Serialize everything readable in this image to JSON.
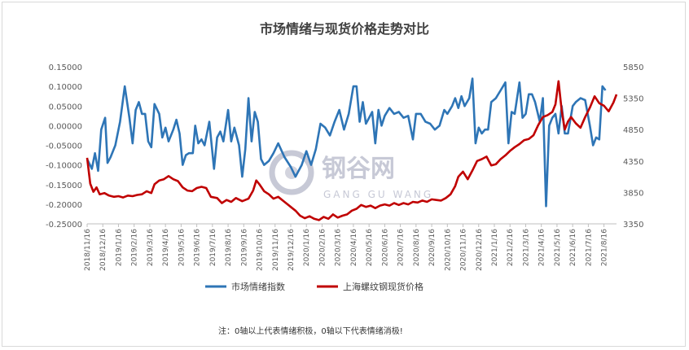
{
  "title": "市场情绪与现货价格走势对比",
  "note": "注：0轴以上代表情绪积极，0轴以下代表情绪消极!",
  "watermark": {
    "main": "钢谷网",
    "sub": "GANG GU WANG"
  },
  "colors": {
    "sentiment": "#2e75b6",
    "price": "#c00000"
  },
  "chart_data": {
    "type": "line",
    "dual_axis": true,
    "y_left": {
      "range": [
        -0.25,
        0.15
      ],
      "ticks": [
        "-0.25000",
        "-0.20000",
        "-0.15000",
        "-0.10000",
        "-0.05000",
        "0.00000",
        "0.05000",
        "0.10000",
        "0.15000"
      ]
    },
    "y_right": {
      "range": [
        3350,
        5850
      ],
      "ticks": [
        "3350",
        "3850",
        "4350",
        "4850",
        "5350",
        "5850"
      ]
    },
    "x_tick_labels": [
      "2018/11/16",
      "2018/12/16",
      "2019/1/16",
      "2019/2/16",
      "2019/3/16",
      "2019/4/16",
      "2019/5/16",
      "2019/6/16",
      "2019/7/16",
      "2019/8/16",
      "2019/9/16",
      "2019/10/16",
      "2019/11/16",
      "2019/12/16",
      "2020/1/16",
      "2020/2/16",
      "2020/3/16",
      "2020/4/16",
      "2020/5/16",
      "2020/6/16",
      "2020/7/16",
      "2020/8/16",
      "2020/9/16",
      "2020/10/16",
      "2020/11/16",
      "2020/12/16",
      "2021/1/16",
      "2021/2/16",
      "2021/3/16",
      "2021/4/16",
      "2021/5/16",
      "2021/6/16",
      "2021/7/16",
      "2021/8/16"
    ],
    "x_range": [
      0,
      33.8
    ],
    "series": [
      {
        "name": "市场情绪指数",
        "axis": "left",
        "points": [
          [
            0,
            -0.085
          ],
          [
            0.3,
            -0.11
          ],
          [
            0.5,
            -0.07
          ],
          [
            0.7,
            -0.115
          ],
          [
            0.9,
            -0.01
          ],
          [
            1.15,
            0.02
          ],
          [
            1.3,
            -0.095
          ],
          [
            1.5,
            -0.08
          ],
          [
            1.8,
            -0.05
          ],
          [
            2.1,
            0.01
          ],
          [
            2.4,
            0.1
          ],
          [
            2.7,
            0.02
          ],
          [
            2.9,
            -0.045
          ],
          [
            3.1,
            0.04
          ],
          [
            3.3,
            0.06
          ],
          [
            3.5,
            0.03
          ],
          [
            3.7,
            0.03
          ],
          [
            3.9,
            -0.04
          ],
          [
            4.1,
            -0.055
          ],
          [
            4.3,
            0.055
          ],
          [
            4.6,
            0.03
          ],
          [
            4.8,
            -0.03
          ],
          [
            5.0,
            -0.005
          ],
          [
            5.2,
            -0.04
          ],
          [
            5.5,
            -0.01
          ],
          [
            5.7,
            0.015
          ],
          [
            5.9,
            -0.02
          ],
          [
            6.1,
            -0.1
          ],
          [
            6.3,
            -0.075
          ],
          [
            6.5,
            -0.07
          ],
          [
            6.75,
            -0.07
          ],
          [
            6.9,
            0.0
          ],
          [
            7.1,
            -0.045
          ],
          [
            7.3,
            -0.035
          ],
          [
            7.5,
            -0.05
          ],
          [
            7.8,
            0.01
          ],
          [
            8.1,
            -0.11
          ],
          [
            8.3,
            -0.03
          ],
          [
            8.5,
            -0.015
          ],
          [
            8.7,
            -0.04
          ],
          [
            9.0,
            0.04
          ],
          [
            9.2,
            -0.04
          ],
          [
            9.4,
            -0.005
          ],
          [
            9.7,
            -0.05
          ],
          [
            9.9,
            -0.13
          ],
          [
            10.1,
            -0.06
          ],
          [
            10.3,
            0.07
          ],
          [
            10.5,
            -0.04
          ],
          [
            10.7,
            0.035
          ],
          [
            10.9,
            0.01
          ],
          [
            11.1,
            -0.085
          ],
          [
            11.3,
            -0.1
          ],
          [
            11.6,
            -0.09
          ],
          [
            11.9,
            -0.07
          ],
          [
            12.2,
            -0.045
          ],
          [
            12.6,
            -0.08
          ],
          [
            13.0,
            -0.105
          ],
          [
            13.3,
            -0.13
          ],
          [
            13.7,
            -0.1
          ],
          [
            14.0,
            -0.065
          ],
          [
            14.3,
            -0.1
          ],
          [
            14.6,
            -0.06
          ],
          [
            14.9,
            0.005
          ],
          [
            15.2,
            -0.005
          ],
          [
            15.5,
            -0.025
          ],
          [
            15.8,
            0.01
          ],
          [
            16.1,
            0.04
          ],
          [
            16.4,
            -0.01
          ],
          [
            16.7,
            0.03
          ],
          [
            17.0,
            0.1
          ],
          [
            17.2,
            0.1
          ],
          [
            17.4,
            0.01
          ],
          [
            17.6,
            0.06
          ],
          [
            17.8,
            0.005
          ],
          [
            18.0,
            0.02
          ],
          [
            18.2,
            0.035
          ],
          [
            18.4,
            -0.045
          ],
          [
            18.6,
            0.04
          ],
          [
            18.8,
            0.0
          ],
          [
            19.0,
            0.025
          ],
          [
            19.3,
            0.045
          ],
          [
            19.6,
            0.03
          ],
          [
            19.9,
            0.035
          ],
          [
            20.2,
            0.02
          ],
          [
            20.5,
            0.025
          ],
          [
            20.8,
            -0.035
          ],
          [
            21.0,
            0.03
          ],
          [
            21.3,
            0.03
          ],
          [
            21.6,
            0.01
          ],
          [
            21.9,
            0.005
          ],
          [
            22.2,
            -0.01
          ],
          [
            22.5,
            0.0
          ],
          [
            22.8,
            0.04
          ],
          [
            23.0,
            0.03
          ],
          [
            23.3,
            0.05
          ],
          [
            23.5,
            0.07
          ],
          [
            23.7,
            0.045
          ],
          [
            23.9,
            0.075
          ],
          [
            24.1,
            0.05
          ],
          [
            24.4,
            0.07
          ],
          [
            24.6,
            0.12
          ],
          [
            24.8,
            -0.045
          ],
          [
            25.0,
            -0.005
          ],
          [
            25.2,
            -0.02
          ],
          [
            25.4,
            -0.01
          ],
          [
            25.6,
            -0.01
          ],
          [
            25.8,
            0.06
          ],
          [
            26.1,
            0.07
          ],
          [
            26.4,
            0.09
          ],
          [
            26.7,
            0.11
          ],
          [
            26.9,
            -0.045
          ],
          [
            27.1,
            0.035
          ],
          [
            27.3,
            0.03
          ],
          [
            27.6,
            0.11
          ],
          [
            27.8,
            0.02
          ],
          [
            28.0,
            0.03
          ],
          [
            28.2,
            0.08
          ],
          [
            28.4,
            0.08
          ],
          [
            28.6,
            0.06
          ],
          [
            28.9,
            0.01
          ],
          [
            29.1,
            0.07
          ],
          [
            29.3,
            -0.205
          ],
          [
            29.5,
            0.0
          ],
          [
            29.7,
            0.02
          ],
          [
            29.9,
            0.03
          ],
          [
            30.1,
            -0.02
          ],
          [
            30.3,
            0.05
          ],
          [
            30.5,
            -0.02
          ],
          [
            30.7,
            -0.02
          ],
          [
            31.0,
            0.05
          ],
          [
            31.2,
            0.06
          ],
          [
            31.5,
            0.07
          ],
          [
            31.8,
            0.065
          ],
          [
            32.1,
            0.0
          ],
          [
            32.3,
            -0.05
          ],
          [
            32.5,
            -0.03
          ],
          [
            32.7,
            -0.035
          ],
          [
            32.9,
            0.1
          ],
          [
            33.1,
            0.09
          ]
        ]
      },
      {
        "name": "上海螺纹钢现货价格",
        "axis": "right",
        "points": [
          [
            0,
            4400
          ],
          [
            0.2,
            3990
          ],
          [
            0.4,
            3860
          ],
          [
            0.6,
            3930
          ],
          [
            0.8,
            3820
          ],
          [
            1.1,
            3840
          ],
          [
            1.4,
            3800
          ],
          [
            1.7,
            3780
          ],
          [
            2.0,
            3790
          ],
          [
            2.3,
            3770
          ],
          [
            2.6,
            3800
          ],
          [
            2.9,
            3790
          ],
          [
            3.2,
            3810
          ],
          [
            3.5,
            3820
          ],
          [
            3.8,
            3870
          ],
          [
            4.1,
            3840
          ],
          [
            4.3,
            3980
          ],
          [
            4.6,
            4040
          ],
          [
            4.9,
            4060
          ],
          [
            5.2,
            4110
          ],
          [
            5.5,
            4060
          ],
          [
            5.8,
            4030
          ],
          [
            6.1,
            3930
          ],
          [
            6.4,
            3880
          ],
          [
            6.7,
            3870
          ],
          [
            7.0,
            3920
          ],
          [
            7.3,
            3940
          ],
          [
            7.6,
            3920
          ],
          [
            7.9,
            3780
          ],
          [
            8.3,
            3760
          ],
          [
            8.6,
            3680
          ],
          [
            8.9,
            3730
          ],
          [
            9.2,
            3700
          ],
          [
            9.5,
            3760
          ],
          [
            9.9,
            3710
          ],
          [
            10.3,
            3750
          ],
          [
            10.6,
            3880
          ],
          [
            10.8,
            4040
          ],
          [
            11.0,
            3980
          ],
          [
            11.3,
            3870
          ],
          [
            11.6,
            3820
          ],
          [
            11.9,
            3750
          ],
          [
            12.2,
            3780
          ],
          [
            12.6,
            3700
          ],
          [
            13.0,
            3620
          ],
          [
            13.3,
            3560
          ],
          [
            13.6,
            3480
          ],
          [
            13.9,
            3440
          ],
          [
            14.2,
            3470
          ],
          [
            14.5,
            3430
          ],
          [
            14.8,
            3410
          ],
          [
            15.1,
            3460
          ],
          [
            15.4,
            3430
          ],
          [
            15.7,
            3500
          ],
          [
            16.0,
            3450
          ],
          [
            16.3,
            3480
          ],
          [
            16.6,
            3500
          ],
          [
            16.9,
            3560
          ],
          [
            17.2,
            3590
          ],
          [
            17.5,
            3650
          ],
          [
            17.8,
            3620
          ],
          [
            18.1,
            3640
          ],
          [
            18.4,
            3600
          ],
          [
            18.7,
            3640
          ],
          [
            19.0,
            3660
          ],
          [
            19.3,
            3640
          ],
          [
            19.6,
            3680
          ],
          [
            19.9,
            3650
          ],
          [
            20.2,
            3680
          ],
          [
            20.5,
            3660
          ],
          [
            20.8,
            3700
          ],
          [
            21.1,
            3690
          ],
          [
            21.4,
            3720
          ],
          [
            21.7,
            3700
          ],
          [
            22.0,
            3740
          ],
          [
            22.3,
            3730
          ],
          [
            22.6,
            3720
          ],
          [
            22.9,
            3760
          ],
          [
            23.2,
            3820
          ],
          [
            23.5,
            3950
          ],
          [
            23.7,
            4100
          ],
          [
            24.0,
            4180
          ],
          [
            24.3,
            4060
          ],
          [
            24.6,
            4200
          ],
          [
            24.9,
            4350
          ],
          [
            25.2,
            4380
          ],
          [
            25.5,
            4420
          ],
          [
            25.8,
            4280
          ],
          [
            26.1,
            4300
          ],
          [
            26.4,
            4380
          ],
          [
            26.7,
            4440
          ],
          [
            27.0,
            4510
          ],
          [
            27.3,
            4570
          ],
          [
            27.6,
            4620
          ],
          [
            27.9,
            4680
          ],
          [
            28.2,
            4700
          ],
          [
            28.5,
            4760
          ],
          [
            28.8,
            4920
          ],
          [
            29.1,
            5050
          ],
          [
            29.4,
            5080
          ],
          [
            29.7,
            5130
          ],
          [
            29.9,
            5250
          ],
          [
            30.1,
            5620
          ],
          [
            30.3,
            5150
          ],
          [
            30.5,
            4850
          ],
          [
            30.7,
            4980
          ],
          [
            30.9,
            5050
          ],
          [
            31.2,
            4950
          ],
          [
            31.5,
            4880
          ],
          [
            31.8,
            5050
          ],
          [
            32.1,
            5200
          ],
          [
            32.4,
            5380
          ],
          [
            32.7,
            5270
          ],
          [
            33.0,
            5230
          ],
          [
            33.3,
            5140
          ],
          [
            33.6,
            5280
          ],
          [
            33.8,
            5410
          ]
        ]
      }
    ]
  }
}
